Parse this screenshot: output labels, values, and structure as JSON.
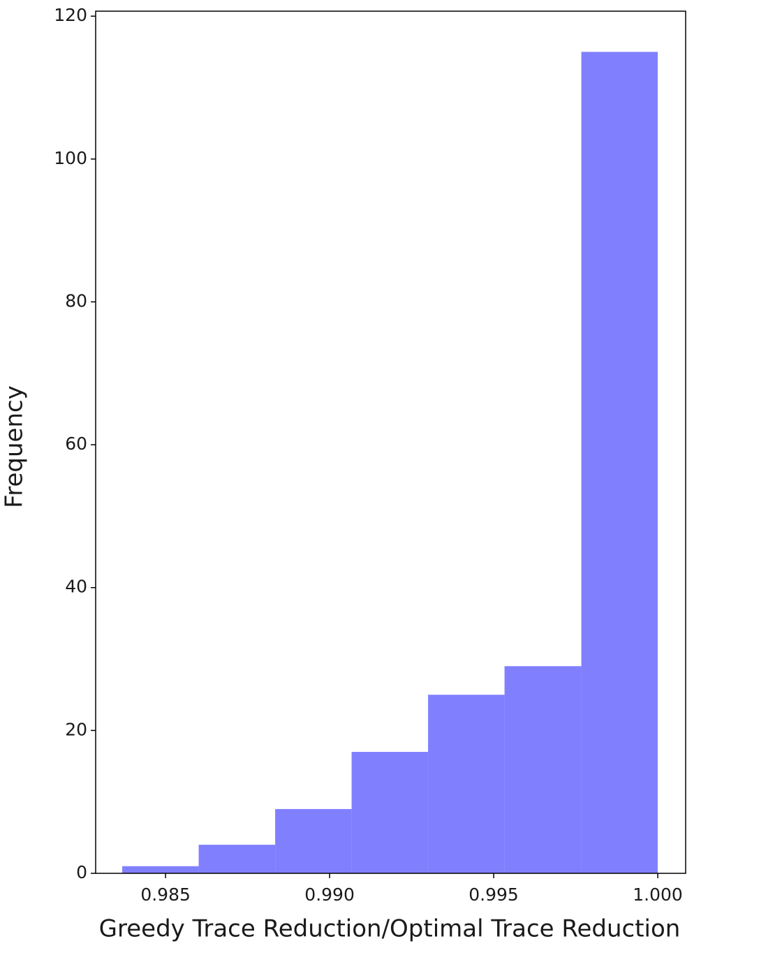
{
  "chart_data": {
    "type": "histogram",
    "xlabel": "Greedy Trace Reduction/Optimal Trace Reduction",
    "ylabel": "Frequency",
    "bins": [
      0.98368,
      0.98601,
      0.98834,
      0.99067,
      0.993,
      0.99533,
      0.99767,
      1.0
    ],
    "values": [
      1,
      4,
      9,
      17,
      25,
      29,
      115
    ],
    "color": "#8080ff",
    "xlim": [
      0.98287,
      1.00085
    ],
    "ylim": [
      0,
      120.7
    ],
    "xticks": [
      0.985,
      {
        "value": 0.99,
        "label": "0.990"
      },
      0.995,
      {
        "value": 1,
        "label": "1.000"
      }
    ],
    "yticks": [
      0,
      20,
      40,
      60,
      80,
      100,
      120
    ],
    "grid": false
  }
}
